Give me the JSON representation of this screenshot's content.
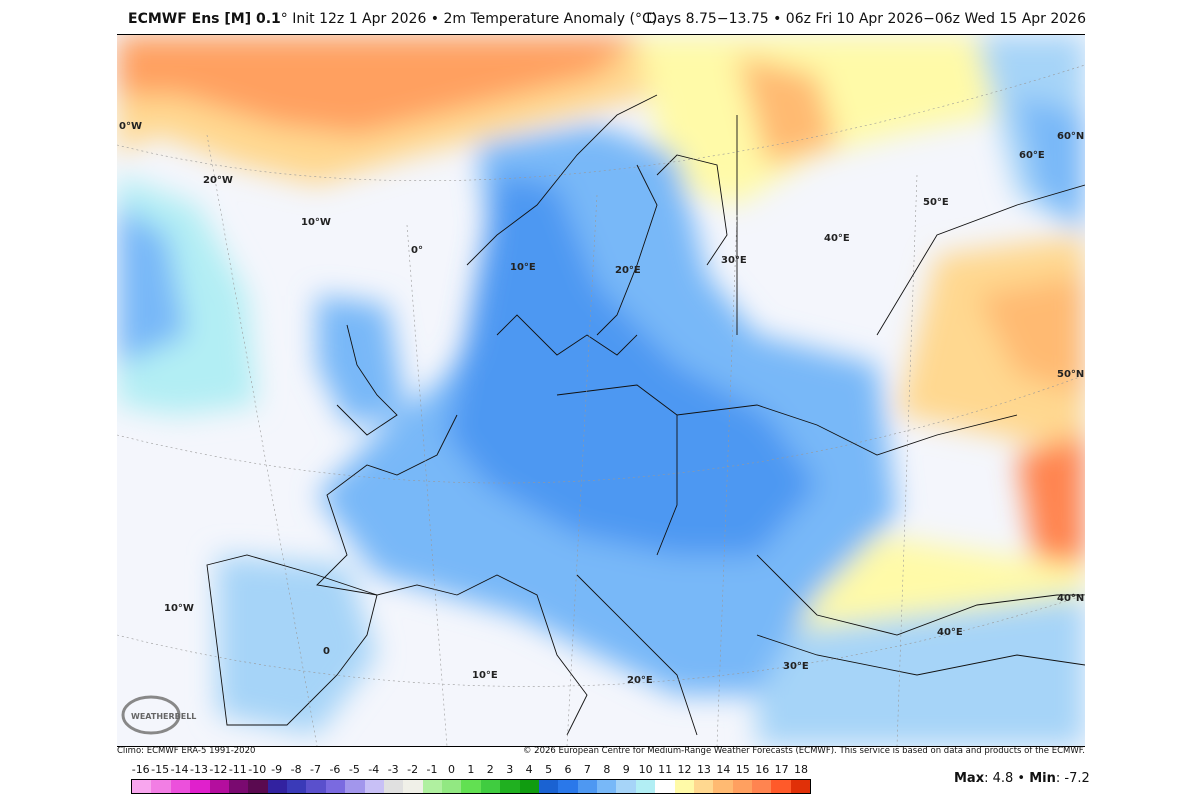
{
  "header": {
    "model": "ECMWF Ens [M] 0.1",
    "degree": "°",
    "init": "Init 12z 1 Apr 2026 • 2m Temperature Anomaly (°C)",
    "valid": "Days 8.75−13.75 • 06z Fri 10 Apr 2026−06z Wed 15 Apr 2026"
  },
  "footer": {
    "climo": "Climo: ECMWF ERA-5 1991-2020",
    "copyright": "© 2026 European Centre for Medium-Range Weather Forecasts (ECMWF). This service is based on data and products of the ECMWF."
  },
  "logo": "WEATHERBELL",
  "map": {
    "graticule_labels": [
      "0°W",
      "20°W",
      "10°W",
      "0°",
      "10°E",
      "20°E",
      "30°E",
      "40°E",
      "50°E",
      "60°E",
      "60°N",
      "50°N",
      "40°N",
      "10°W",
      "0",
      "10°E",
      "20°E",
      "30°E",
      "40°E"
    ]
  },
  "colorbar": {
    "labels": [
      "-16",
      "-15",
      "-14",
      "-13",
      "-12",
      "-11",
      "-10",
      "-9",
      "-8",
      "-7",
      "-6",
      "-5",
      "-4",
      "-3",
      "-2",
      "-1",
      "0",
      "1",
      "2",
      "3",
      "4",
      "5",
      "6",
      "7",
      "8",
      "9",
      "10",
      "11",
      "12",
      "13",
      "14",
      "15",
      "16",
      "17",
      "18"
    ],
    "colors": [
      "#f8a6ee",
      "#f27ee4",
      "#ec50dc",
      "#e020cc",
      "#b40e9e",
      "#7a0a70",
      "#5a0a50",
      "#3222a0",
      "#3a3ab8",
      "#5a50cc",
      "#7a6ae0",
      "#a296ec",
      "#c8c0f6",
      "#e0e0e0",
      "#f0f0e8",
      "#b0f0a0",
      "#92e882",
      "#62e052",
      "#40cc40",
      "#20b020",
      "#109c10",
      "#1a62d2",
      "#2a78ea",
      "#4e98f2",
      "#78b8f8",
      "#a6d4f8",
      "#b2eef4",
      "#ffffff",
      "#fffaa8",
      "#ffd890",
      "#ffba72",
      "#ffa060",
      "#ff8450",
      "#ff5a2a",
      "#e03008"
    ]
  },
  "stats": {
    "max_label": "Max",
    "max": ": 4.8 • ",
    "min_label": "Min",
    "min": ": -7.2"
  },
  "colors": {
    "cold": "#4e90f0",
    "warm": "#ffa060",
    "neutral": "#f4f6fc"
  }
}
